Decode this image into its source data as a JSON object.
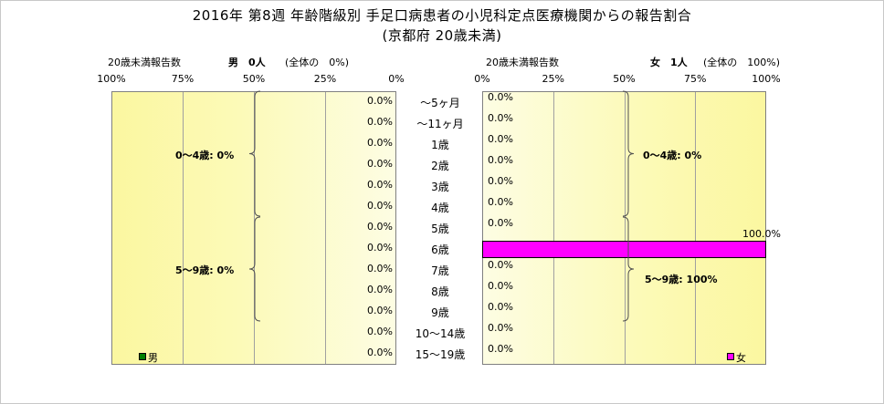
{
  "title": {
    "line1": "2016年 第8週 年齢階級別 手足口病患者の小児科定点医療機関からの報告割合",
    "line2": "(京都府 20歳未満)"
  },
  "male_header": {
    "label": "20歳未満報告数",
    "count_text": "男　0人",
    "share_text": "(全体の　0%)"
  },
  "female_header": {
    "label": "20歳未満報告数",
    "count_text": "女　1人",
    "share_text": "(全体の　100%)"
  },
  "chart_data": [
    {
      "type": "bar",
      "orientation": "horizontal",
      "direction": "right-to-left",
      "series_name": "男",
      "categories": [
        "〜5ヶ月",
        "〜11ヶ月",
        "1歳",
        "2歳",
        "3歳",
        "4歳",
        "5歳",
        "6歳",
        "7歳",
        "8歳",
        "9歳",
        "10〜14歳",
        "15〜19歳"
      ],
      "values": [
        0,
        0,
        0,
        0,
        0,
        0,
        0,
        0,
        0,
        0,
        0,
        0,
        0
      ],
      "labels": [
        "0.0%",
        "0.0%",
        "0.0%",
        "0.0%",
        "0.0%",
        "0.0%",
        "0.0%",
        "0.0%",
        "0.0%",
        "0.0%",
        "0.0%",
        "0.0%",
        "0.0%"
      ],
      "xlim": [
        0,
        100
      ],
      "ticks": [
        "100%",
        "75%",
        "50%",
        "25%",
        "0%"
      ],
      "color": "#008000",
      "grid": true,
      "legend": "bottom-left",
      "groups": [
        {
          "label": "0〜4歳: 0%"
        },
        {
          "label": "5〜9歳: 0%"
        }
      ]
    },
    {
      "type": "bar",
      "orientation": "horizontal",
      "direction": "left-to-right",
      "series_name": "女",
      "categories": [
        "〜5ヶ月",
        "〜11ヶ月",
        "1歳",
        "2歳",
        "3歳",
        "4歳",
        "5歳",
        "6歳",
        "7歳",
        "8歳",
        "9歳",
        "10〜14歳",
        "15〜19歳"
      ],
      "values": [
        0,
        0,
        0,
        0,
        0,
        0,
        0,
        100,
        0,
        0,
        0,
        0,
        0
      ],
      "labels": [
        "0.0%",
        "0.0%",
        "0.0%",
        "0.0%",
        "0.0%",
        "0.0%",
        "0.0%",
        "100.0%",
        "0.0%",
        "0.0%",
        "0.0%",
        "0.0%",
        "0.0%"
      ],
      "xlim": [
        0,
        100
      ],
      "ticks": [
        "0%",
        "25%",
        "50%",
        "75%",
        "100%"
      ],
      "color": "#ff00ff",
      "grid": true,
      "legend": "bottom-right",
      "groups": [
        {
          "label": "0〜4歳: 0%"
        },
        {
          "label": "5〜9歳: 100%"
        }
      ]
    }
  ]
}
